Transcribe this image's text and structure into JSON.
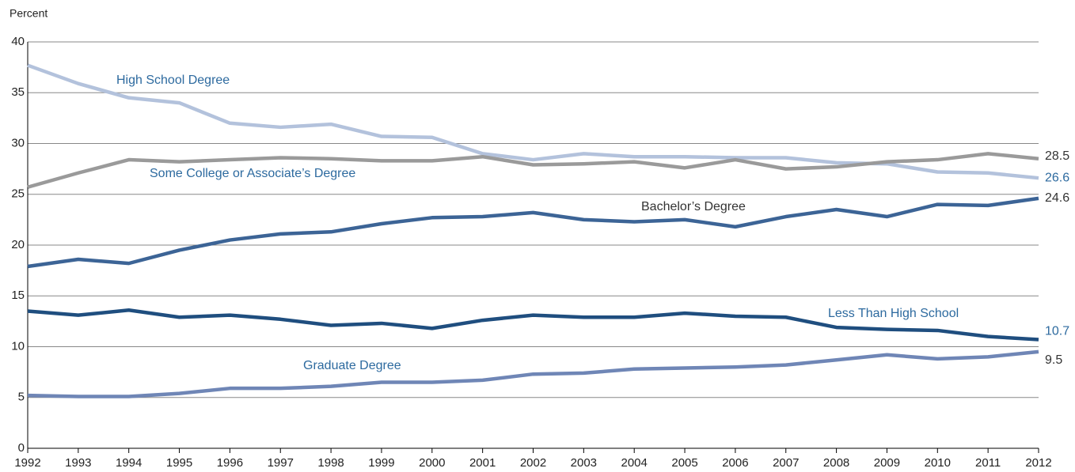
{
  "chart_data": {
    "type": "line",
    "y_label": "Percent",
    "x": [
      1992,
      1993,
      1994,
      1995,
      1996,
      1997,
      1998,
      1999,
      2000,
      2001,
      2002,
      2003,
      2004,
      2005,
      2006,
      2007,
      2008,
      2009,
      2010,
      2011,
      2012
    ],
    "xlim": [
      1992,
      2012
    ],
    "xticks": [
      1992,
      1993,
      1994,
      1995,
      1996,
      1997,
      1998,
      1999,
      2000,
      2001,
      2002,
      2003,
      2004,
      2005,
      2006,
      2007,
      2008,
      2009,
      2010,
      2011,
      2012
    ],
    "ylim": [
      0,
      40
    ],
    "yticks": [
      0,
      5,
      10,
      15,
      20,
      25,
      30,
      35,
      40
    ],
    "grid": true,
    "series": [
      {
        "name": "High School Degree",
        "color": "#b3c2dc",
        "values": [
          37.7,
          35.9,
          34.5,
          34.0,
          32.0,
          31.6,
          31.9,
          30.7,
          30.6,
          29.0,
          28.4,
          29.0,
          28.7,
          28.7,
          28.6,
          28.6,
          28.1,
          28.0,
          27.2,
          27.1,
          26.6
        ]
      },
      {
        "name": "Some College or Associate’s Degree",
        "color": "#9a9a9a",
        "values": [
          25.7,
          27.1,
          28.4,
          28.2,
          28.4,
          28.6,
          28.5,
          28.3,
          28.3,
          28.7,
          27.9,
          28.0,
          28.2,
          27.6,
          28.4,
          27.5,
          27.7,
          28.2,
          28.4,
          29.0,
          28.5
        ]
      },
      {
        "name": "Bachelor’s Degree",
        "color": "#3c6496",
        "values": [
          17.9,
          18.6,
          18.2,
          19.5,
          20.5,
          21.1,
          21.3,
          22.1,
          22.7,
          22.8,
          23.2,
          22.5,
          22.3,
          22.5,
          21.8,
          22.8,
          23.5,
          22.8,
          24.0,
          23.9,
          24.6
        ]
      },
      {
        "name": "Less Than High School",
        "color": "#1f4e7f",
        "values": [
          13.5,
          13.1,
          13.6,
          12.9,
          13.1,
          12.7,
          12.1,
          12.3,
          11.8,
          12.6,
          13.1,
          12.9,
          12.9,
          13.3,
          13.0,
          12.9,
          11.9,
          11.7,
          11.6,
          11.0,
          10.7
        ]
      },
      {
        "name": "Graduate Degree",
        "color": "#6f86b6",
        "values": [
          5.2,
          5.1,
          5.1,
          5.4,
          5.9,
          5.9,
          6.1,
          6.5,
          6.5,
          6.7,
          7.3,
          7.4,
          7.8,
          7.9,
          8.0,
          8.2,
          8.7,
          9.2,
          8.8,
          9.0,
          9.5
        ]
      }
    ]
  }
}
